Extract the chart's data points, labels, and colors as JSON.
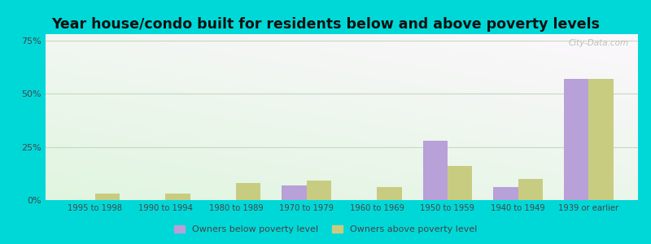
{
  "title": "Year house/condo built for residents below and above poverty levels",
  "categories": [
    "1995 to 1998",
    "1990 to 1994",
    "1980 to 1989",
    "1970 to 1979",
    "1960 to 1969",
    "1950 to 1959",
    "1940 to 1949",
    "1939 or earlier"
  ],
  "below_poverty": [
    0.0,
    0.0,
    0.0,
    7.0,
    0.0,
    28.0,
    6.0,
    57.0
  ],
  "above_poverty": [
    3.0,
    3.0,
    8.0,
    9.0,
    6.0,
    16.0,
    10.0,
    57.0
  ],
  "below_color": "#b8a0d8",
  "above_color": "#c8cc80",
  "ylim": [
    0,
    78
  ],
  "yticks": [
    0,
    25,
    50,
    75
  ],
  "ytick_labels": [
    "0%",
    "25%",
    "50%",
    "75%"
  ],
  "background_outer": "#00d8d8",
  "title_fontsize": 12.5,
  "legend_below_label": "Owners below poverty level",
  "legend_above_label": "Owners above poverty level",
  "bar_width": 0.35,
  "grid_color": "#c8d8c0",
  "watermark": "City-Data.com"
}
